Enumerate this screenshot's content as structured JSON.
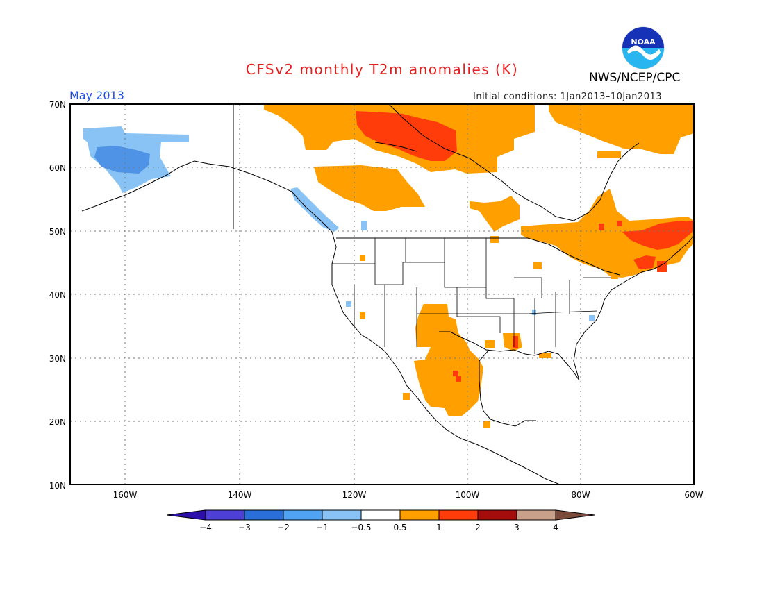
{
  "header": {
    "title": "CFSv2 monthly T2m anomalies (K)",
    "title_color": "#e61e1e",
    "agency": "NWS/NCEP/CPC",
    "period": "May 2013",
    "period_color": "#1e50e6",
    "initial_conditions": "Initial conditions: 1Jan2013–10Jan2013"
  },
  "logo": {
    "icon": "noaa-logo-icon",
    "text": "NOAA"
  },
  "map": {
    "lon_range": [
      -170,
      -60
    ],
    "lat_range": [
      10,
      70
    ],
    "lon_ticks": [
      "160W",
      "140W",
      "120W",
      "100W",
      "80W",
      "60W"
    ],
    "lat_ticks": [
      "70N",
      "60N",
      "50N",
      "40N",
      "30N",
      "20N",
      "10N"
    ],
    "grid": "dotted"
  },
  "colorbar": {
    "labels": [
      "−4",
      "−3",
      "−2",
      "−1",
      "−0.5",
      "0.5",
      "1",
      "2",
      "3",
      "4"
    ],
    "colors": [
      "#2c0ea8",
      "#4e3fd6",
      "#2a6fd9",
      "#4fa3f2",
      "#89c3f5",
      "#ffffff",
      "#ff9f00",
      "#ff3c0a",
      "#a50d0d",
      "#c9a08a",
      "#7a4a3a"
    ]
  },
  "anomaly_regions": [
    {
      "label": "Alaska cool",
      "category": -0.75,
      "color": "#89c3f5"
    },
    {
      "label": "Alaska cool core",
      "category": -1.5,
      "color": "#4fa3f2"
    },
    {
      "label": "BC coast cool",
      "category": -0.75,
      "color": "#89c3f5"
    },
    {
      "label": "N Canada warm",
      "category": 0.75,
      "color": "#ff9f00"
    },
    {
      "label": "Great Slave warm",
      "category": 1.5,
      "color": "#ff3c0a"
    },
    {
      "label": "Quebec warm",
      "category": 0.75,
      "color": "#ff9f00"
    },
    {
      "label": "New England warm",
      "category": 1.5,
      "color": "#ff3c0a"
    },
    {
      "label": "SW US / Mexico warm",
      "category": 0.75,
      "color": "#ff9f00"
    }
  ]
}
